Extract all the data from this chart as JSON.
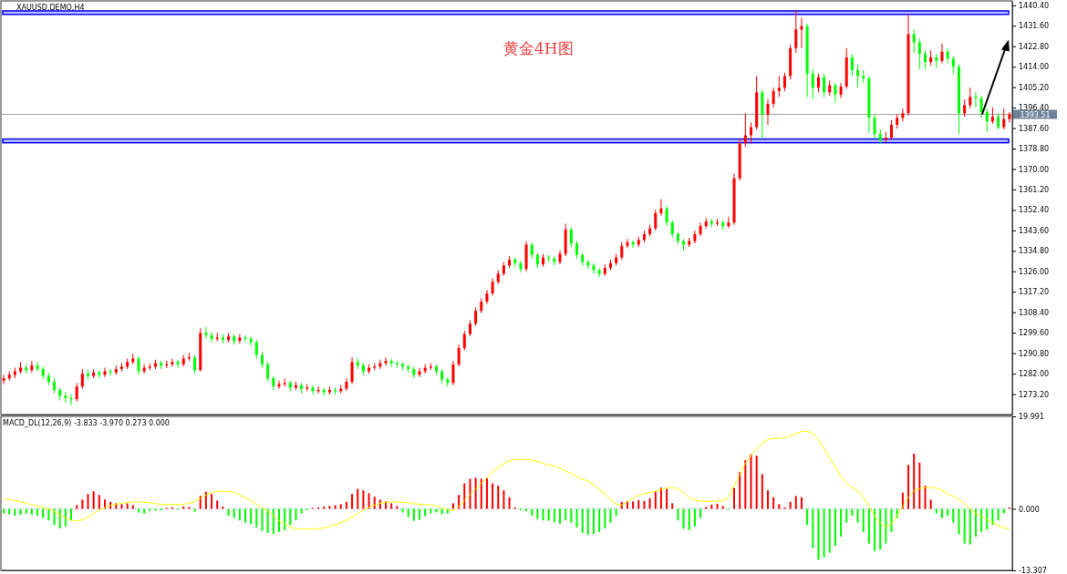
{
  "chart_data": [
    {
      "type": "candlestick",
      "title": "XAUUSD.DEMO,H4",
      "annotations": [
        "黄金4H图"
      ],
      "categories": [
        null,
        null,
        null,
        null,
        null,
        null,
        null,
        null,
        null,
        null,
        null,
        null,
        null,
        null,
        null,
        null,
        null,
        null,
        null,
        null,
        null,
        null,
        null,
        null,
        null,
        null,
        null,
        null,
        null,
        null,
        null,
        null,
        null,
        null,
        null,
        null,
        null,
        null,
        null,
        null,
        null,
        null,
        null,
        null,
        null,
        null,
        null,
        null,
        null,
        null,
        null,
        null,
        null,
        null,
        null,
        null,
        null,
        null,
        null,
        null,
        null,
        null,
        null,
        null,
        null,
        null,
        null,
        null,
        null,
        null,
        null,
        null,
        null,
        null,
        null,
        null,
        null,
        null,
        null,
        null,
        null,
        null,
        null,
        null,
        null,
        null,
        null,
        null,
        null,
        null,
        null,
        null,
        null,
        null,
        null,
        null,
        null,
        null,
        null,
        null,
        null,
        null,
        null,
        null,
        null,
        null,
        null,
        null,
        null,
        null,
        null,
        null,
        null,
        null,
        null,
        null,
        null,
        null,
        null,
        null,
        null,
        null,
        null,
        null,
        null,
        null,
        null,
        null,
        null,
        null,
        null,
        null,
        null,
        null,
        null,
        null,
        null,
        null,
        null,
        null,
        null,
        null,
        null,
        null,
        null,
        null,
        null,
        null,
        null,
        null,
        null,
        null,
        null,
        null,
        null,
        null,
        null,
        null,
        null,
        null,
        null,
        null,
        null,
        null,
        null,
        null,
        null,
        null,
        null,
        null,
        null,
        null,
        null,
        null,
        null,
        null,
        null,
        null,
        null,
        null
      ],
      "ohlc": [
        [
          1279.0,
          1281.5,
          1277.5,
          1280.0
        ],
        [
          1280.0,
          1283.0,
          1279.0,
          1281.5
        ],
        [
          1281.5,
          1284.5,
          1280.0,
          1283.0
        ],
        [
          1283.0,
          1287.0,
          1282.0,
          1284.6
        ],
        [
          1284.6,
          1286.0,
          1282.0,
          1283.5
        ],
        [
          1283.5,
          1287.5,
          1282.5,
          1285.5
        ],
        [
          1285.5,
          1287.0,
          1283.0,
          1284.0
        ],
        [
          1284.0,
          1285.0,
          1279.5,
          1281.0
        ],
        [
          1281.0,
          1282.5,
          1277.0,
          1278.5
        ],
        [
          1278.5,
          1280.0,
          1273.5,
          1275.0
        ],
        [
          1275.0,
          1276.0,
          1270.5,
          1272.5
        ],
        [
          1272.5,
          1274.0,
          1269.5,
          1271.5
        ],
        [
          1271.5,
          1273.0,
          1268.5,
          1271.0
        ],
        [
          1271.0,
          1278.0,
          1270.0,
          1276.5
        ],
        [
          1276.5,
          1284.0,
          1275.5,
          1282.0
        ],
        [
          1282.0,
          1283.5,
          1279.5,
          1281.0
        ],
        [
          1281.0,
          1284.0,
          1280.0,
          1282.5
        ],
        [
          1282.5,
          1283.5,
          1280.0,
          1281.5
        ],
        [
          1281.5,
          1284.5,
          1280.5,
          1283.0
        ],
        [
          1283.0,
          1284.0,
          1281.0,
          1282.5
        ],
        [
          1282.5,
          1285.5,
          1281.5,
          1284.0
        ],
        [
          1284.0,
          1286.5,
          1283.0,
          1285.0
        ],
        [
          1285.0,
          1288.5,
          1284.0,
          1287.0
        ],
        [
          1287.0,
          1290.5,
          1286.0,
          1288.5
        ],
        [
          1288.5,
          1289.5,
          1281.5,
          1283.0
        ],
        [
          1283.0,
          1286.0,
          1282.0,
          1284.5
        ],
        [
          1284.5,
          1286.5,
          1283.5,
          1285.0
        ],
        [
          1285.0,
          1288.0,
          1284.0,
          1286.5
        ],
        [
          1286.5,
          1287.5,
          1284.0,
          1285.5
        ],
        [
          1285.5,
          1287.5,
          1284.5,
          1286.0
        ],
        [
          1286.0,
          1288.5,
          1285.0,
          1287.0
        ],
        [
          1287.0,
          1288.0,
          1284.5,
          1286.0
        ],
        [
          1286.0,
          1290.0,
          1285.0,
          1288.5
        ],
        [
          1288.5,
          1291.0,
          1287.5,
          1289.0
        ],
        [
          1289.0,
          1290.0,
          1282.0,
          1283.5
        ],
        [
          1283.5,
          1301.5,
          1283.0,
          1299.5
        ],
        [
          1299.5,
          1302.0,
          1297.0,
          1298.5
        ],
        [
          1298.5,
          1300.0,
          1295.5,
          1297.0
        ],
        [
          1297.0,
          1299.5,
          1296.0,
          1297.5
        ],
        [
          1297.5,
          1299.0,
          1295.0,
          1296.5
        ],
        [
          1296.5,
          1299.5,
          1295.5,
          1298.0
        ],
        [
          1298.0,
          1299.0,
          1294.5,
          1296.0
        ],
        [
          1296.0,
          1299.0,
          1295.0,
          1297.5
        ],
        [
          1297.5,
          1298.5,
          1295.5,
          1297.0
        ],
        [
          1297.0,
          1298.0,
          1294.0,
          1295.5
        ],
        [
          1295.5,
          1296.5,
          1288.5,
          1290.0
        ],
        [
          1290.0,
          1291.5,
          1284.5,
          1286.0
        ],
        [
          1286.0,
          1287.0,
          1278.5,
          1280.0
        ],
        [
          1280.0,
          1281.0,
          1275.0,
          1276.5
        ],
        [
          1276.5,
          1279.0,
          1275.5,
          1277.5
        ],
        [
          1277.5,
          1280.0,
          1276.5,
          1278.0
        ],
        [
          1278.0,
          1279.0,
          1274.5,
          1276.0
        ],
        [
          1276.0,
          1278.5,
          1275.0,
          1277.0
        ],
        [
          1277.0,
          1278.0,
          1273.5,
          1275.5
        ],
        [
          1275.5,
          1277.5,
          1274.5,
          1276.0
        ],
        [
          1276.0,
          1277.0,
          1273.0,
          1274.5
        ],
        [
          1274.5,
          1276.5,
          1273.5,
          1275.0
        ],
        [
          1275.0,
          1276.0,
          1272.5,
          1274.0
        ],
        [
          1274.0,
          1276.5,
          1273.0,
          1275.0
        ],
        [
          1275.0,
          1276.0,
          1273.0,
          1274.5
        ],
        [
          1274.5,
          1277.0,
          1273.5,
          1275.5
        ],
        [
          1275.5,
          1280.0,
          1274.5,
          1278.5
        ],
        [
          1278.5,
          1289.0,
          1277.5,
          1287.0
        ],
        [
          1287.0,
          1288.5,
          1284.0,
          1285.5
        ],
        [
          1285.5,
          1286.5,
          1281.5,
          1283.0
        ],
        [
          1283.0,
          1286.0,
          1282.0,
          1284.5
        ],
        [
          1284.5,
          1286.5,
          1283.5,
          1285.0
        ],
        [
          1285.0,
          1288.0,
          1284.0,
          1286.5
        ],
        [
          1286.5,
          1289.0,
          1285.5,
          1287.5
        ],
        [
          1287.5,
          1288.5,
          1285.0,
          1286.5
        ],
        [
          1286.5,
          1287.5,
          1284.5,
          1286.0
        ],
        [
          1286.0,
          1287.0,
          1283.5,
          1285.0
        ],
        [
          1285.0,
          1286.0,
          1282.5,
          1284.0
        ],
        [
          1284.0,
          1285.0,
          1280.0,
          1281.5
        ],
        [
          1281.5,
          1284.5,
          1280.5,
          1283.0
        ],
        [
          1283.0,
          1286.0,
          1282.0,
          1284.5
        ],
        [
          1284.5,
          1286.5,
          1283.5,
          1285.0
        ],
        [
          1285.0,
          1286.0,
          1281.5,
          1283.0
        ],
        [
          1283.0,
          1284.0,
          1278.0,
          1279.5
        ],
        [
          1279.5,
          1280.5,
          1276.5,
          1278.0
        ],
        [
          1278.0,
          1287.5,
          1277.0,
          1286.0
        ],
        [
          1286.0,
          1294.5,
          1285.0,
          1293.0
        ],
        [
          1293.0,
          1300.5,
          1292.0,
          1299.0
        ],
        [
          1299.0,
          1305.0,
          1298.0,
          1303.5
        ],
        [
          1303.5,
          1310.5,
          1302.5,
          1309.0
        ],
        [
          1309.0,
          1314.5,
          1308.0,
          1313.0
        ],
        [
          1313.0,
          1318.0,
          1312.0,
          1316.5
        ],
        [
          1316.5,
          1323.0,
          1315.5,
          1321.5
        ],
        [
          1321.5,
          1326.5,
          1320.5,
          1325.0
        ],
        [
          1325.0,
          1330.0,
          1324.0,
          1328.5
        ],
        [
          1328.5,
          1332.5,
          1327.5,
          1331.0
        ],
        [
          1331.0,
          1332.0,
          1328.0,
          1329.5
        ],
        [
          1329.5,
          1330.5,
          1325.5,
          1327.0
        ],
        [
          1327.0,
          1339.0,
          1326.0,
          1337.5
        ],
        [
          1337.5,
          1338.5,
          1331.5,
          1333.0
        ],
        [
          1333.0,
          1334.0,
          1327.5,
          1329.0
        ],
        [
          1329.0,
          1333.5,
          1328.0,
          1332.0
        ],
        [
          1332.0,
          1333.0,
          1330.0,
          1331.5
        ],
        [
          1331.5,
          1332.5,
          1328.5,
          1330.0
        ],
        [
          1330.0,
          1335.0,
          1329.0,
          1333.5
        ],
        [
          1333.5,
          1346.5,
          1332.5,
          1344.0
        ],
        [
          1344.0,
          1345.0,
          1336.5,
          1338.0
        ],
        [
          1338.0,
          1339.0,
          1331.5,
          1333.0
        ],
        [
          1333.0,
          1334.0,
          1328.5,
          1330.0
        ],
        [
          1330.0,
          1331.0,
          1327.0,
          1328.5
        ],
        [
          1328.5,
          1329.5,
          1325.0,
          1326.5
        ],
        [
          1326.5,
          1327.5,
          1323.5,
          1325.0
        ],
        [
          1325.0,
          1329.0,
          1324.0,
          1327.5
        ],
        [
          1327.5,
          1331.0,
          1326.5,
          1329.5
        ],
        [
          1329.5,
          1333.5,
          1328.5,
          1332.0
        ],
        [
          1332.0,
          1338.5,
          1331.0,
          1337.0
        ],
        [
          1337.0,
          1340.0,
          1336.0,
          1338.5
        ],
        [
          1338.5,
          1339.5,
          1336.0,
          1337.5
        ],
        [
          1337.5,
          1341.0,
          1336.5,
          1339.5
        ],
        [
          1339.5,
          1343.5,
          1338.5,
          1342.0
        ],
        [
          1342.0,
          1346.0,
          1341.0,
          1344.5
        ],
        [
          1344.5,
          1352.5,
          1343.5,
          1351.0
        ],
        [
          1351.0,
          1357.0,
          1350.0,
          1353.0
        ],
        [
          1353.0,
          1354.0,
          1345.5,
          1347.0
        ],
        [
          1347.0,
          1348.0,
          1340.5,
          1342.0
        ],
        [
          1342.0,
          1343.0,
          1337.5,
          1339.0
        ],
        [
          1339.0,
          1340.0,
          1335.0,
          1337.5
        ],
        [
          1337.5,
          1340.5,
          1336.5,
          1339.0
        ],
        [
          1339.0,
          1343.5,
          1338.0,
          1342.0
        ],
        [
          1342.0,
          1347.0,
          1341.0,
          1345.5
        ],
        [
          1345.5,
          1349.0,
          1344.5,
          1347.5
        ],
        [
          1347.5,
          1348.5,
          1345.0,
          1346.5
        ],
        [
          1346.5,
          1348.5,
          1345.5,
          1347.0
        ],
        [
          1347.0,
          1348.0,
          1344.0,
          1345.5
        ],
        [
          1345.5,
          1349.5,
          1344.5,
          1347.0
        ],
        [
          1347.0,
          1368.0,
          1346.0,
          1366.0
        ],
        [
          1366.0,
          1383.0,
          1365.0,
          1381.0
        ],
        [
          1381.0,
          1394.0,
          1379.5,
          1384.5
        ],
        [
          1384.5,
          1390.0,
          1381.0,
          1388.0
        ],
        [
          1388.0,
          1410.0,
          1387.0,
          1403.0
        ],
        [
          1403.0,
          1404.0,
          1383.0,
          1393.5
        ],
        [
          1393.5,
          1400.0,
          1389.0,
          1398.0
        ],
        [
          1398.0,
          1405.0,
          1396.5,
          1403.5
        ],
        [
          1403.5,
          1410.0,
          1401.0,
          1405.0
        ],
        [
          1405.0,
          1411.5,
          1403.5,
          1410.0
        ],
        [
          1410.0,
          1423.5,
          1408.5,
          1422.0
        ],
        [
          1422.0,
          1438.5,
          1420.0,
          1430.0
        ],
        [
          1430.0,
          1435.0,
          1422.0,
          1431.5
        ],
        [
          1431.5,
          1432.5,
          1401.0,
          1411.0
        ],
        [
          1411.0,
          1413.0,
          1400.0,
          1405.0
        ],
        [
          1405.0,
          1411.0,
          1403.0,
          1409.5
        ],
        [
          1409.5,
          1411.0,
          1401.0,
          1403.0
        ],
        [
          1403.0,
          1408.0,
          1401.5,
          1406.0
        ],
        [
          1406.0,
          1407.0,
          1398.5,
          1402.0
        ],
        [
          1402.0,
          1407.0,
          1400.5,
          1405.5
        ],
        [
          1405.5,
          1422.0,
          1404.5,
          1418.0
        ],
        [
          1418.0,
          1419.5,
          1410.0,
          1412.5
        ],
        [
          1412.5,
          1415.0,
          1405.0,
          1410.0
        ],
        [
          1410.0,
          1412.5,
          1407.0,
          1409.0
        ],
        [
          1409.0,
          1410.0,
          1385.5,
          1392.0
        ],
        [
          1392.0,
          1393.5,
          1383.0,
          1385.0
        ],
        [
          1385.0,
          1387.0,
          1381.0,
          1382.5
        ],
        [
          1382.5,
          1386.0,
          1381.5,
          1383.5
        ],
        [
          1383.5,
          1391.0,
          1382.5,
          1389.0
        ],
        [
          1389.0,
          1393.5,
          1387.5,
          1392.0
        ],
        [
          1392.0,
          1396.0,
          1390.5,
          1394.0
        ],
        [
          1394.0,
          1436.5,
          1393.0,
          1428.0
        ],
        [
          1428.0,
          1430.0,
          1420.0,
          1424.5
        ],
        [
          1424.5,
          1426.0,
          1413.0,
          1419.5
        ],
        [
          1419.5,
          1421.0,
          1413.0,
          1416.0
        ],
        [
          1416.0,
          1421.0,
          1414.5,
          1418.0
        ],
        [
          1418.0,
          1419.5,
          1413.5,
          1416.5
        ],
        [
          1416.5,
          1424.0,
          1415.5,
          1420.5
        ],
        [
          1420.5,
          1422.0,
          1415.5,
          1417.5
        ],
        [
          1417.5,
          1418.5,
          1411.0,
          1414.0
        ],
        [
          1414.0,
          1415.0,
          1385.0,
          1394.0
        ],
        [
          1394.0,
          1400.0,
          1392.5,
          1397.5
        ],
        [
          1397.5,
          1405.0,
          1396.0,
          1401.0
        ],
        [
          1401.0,
          1403.0,
          1396.5,
          1400.5
        ],
        [
          1400.5,
          1401.5,
          1392.0,
          1394.5
        ],
        [
          1394.5,
          1396.0,
          1386.0,
          1390.5
        ],
        [
          1390.5,
          1396.5,
          1389.5,
          1392.5
        ],
        [
          1392.5,
          1394.0,
          1387.0,
          1388.0
        ],
        [
          1388.0,
          1396.0,
          1387.0,
          1391.5
        ],
        [
          1391.5,
          1394.5,
          1390.0,
          1393.5
        ]
      ],
      "colors": [
        "#ff0000",
        "#ff0000",
        "#ff0000",
        "#ff0000",
        "#00ff00",
        "#ff0000",
        "#00ff00",
        "#00ff00",
        "#00ff00",
        "#00ff00",
        "#00ff00",
        "#00ff00",
        "#00ff00",
        "#ff0000",
        "#ff0000",
        "#00ff00",
        "#ff0000",
        "#00ff00",
        "#ff0000",
        "#00ff00",
        "#ff0000",
        "#ff0000",
        "#ff0000",
        "#ff0000",
        "#00ff00",
        "#ff0000",
        "#ff0000",
        "#ff0000",
        "#00ff00",
        "#ff0000",
        "#ff0000",
        "#00ff00",
        "#ff0000",
        "#ff0000",
        "#00ff00",
        "#ff0000",
        "#00ff00",
        "#00ff00",
        "#ff0000",
        "#00ff00",
        "#ff0000",
        "#00ff00",
        "#ff0000",
        "#00ff00",
        "#00ff00",
        "#00ff00",
        "#00ff00",
        "#00ff00",
        "#00ff00",
        "#ff0000",
        "#ff0000",
        "#00ff00",
        "#ff0000",
        "#00ff00",
        "#ff0000",
        "#00ff00",
        "#ff0000",
        "#00ff00",
        "#ff0000",
        "#00ff00",
        "#ff0000",
        "#ff0000",
        "#ff0000",
        "#00ff00",
        "#00ff00",
        "#ff0000",
        "#ff0000",
        "#ff0000",
        "#ff0000",
        "#00ff00",
        "#00ff00",
        "#00ff00",
        "#00ff00",
        "#00ff00",
        "#ff0000",
        "#ff0000",
        "#ff0000",
        "#00ff00",
        "#00ff00",
        "#00ff00",
        "#ff0000",
        "#ff0000",
        "#ff0000",
        "#ff0000",
        "#ff0000",
        "#ff0000",
        "#ff0000",
        "#ff0000",
        "#ff0000",
        "#ff0000",
        "#ff0000",
        "#00ff00",
        "#00ff00",
        "#ff0000",
        "#00ff00",
        "#00ff00",
        "#ff0000",
        "#00ff00",
        "#00ff00",
        "#ff0000",
        "#ff0000",
        "#00ff00",
        "#00ff00",
        "#00ff00",
        "#00ff00",
        "#00ff00",
        "#00ff00",
        "#ff0000",
        "#ff0000",
        "#ff0000",
        "#ff0000",
        "#ff0000",
        "#00ff00",
        "#ff0000",
        "#ff0000",
        "#ff0000",
        "#ff0000",
        "#ff0000",
        "#00ff00",
        "#00ff00",
        "#00ff00",
        "#00ff00",
        "#ff0000",
        "#ff0000",
        "#ff0000",
        "#ff0000",
        "#00ff00",
        "#ff0000",
        "#00ff00",
        "#ff0000",
        "#ff0000",
        "#ff0000",
        "#ff0000",
        "#ff0000",
        "#ff0000",
        "#00ff00",
        "#ff0000",
        "#ff0000",
        "#ff0000",
        "#ff0000",
        "#ff0000",
        "#ff0000",
        "#ff0000",
        "#00ff00",
        "#00ff00",
        "#ff0000",
        "#00ff00",
        "#ff0000",
        "#00ff00",
        "#ff0000",
        "#ff0000",
        "#00ff00",
        "#00ff00",
        "#00ff00",
        "#00ff00",
        "#00ff00",
        "#00ff00",
        "#ff0000",
        "#ff0000",
        "#ff0000",
        "#ff0000",
        "#ff0000",
        "#00ff00",
        "#00ff00",
        "#00ff00",
        "#ff0000",
        "#00ff00",
        "#ff0000",
        "#00ff00",
        "#00ff00",
        "#00ff00",
        "#ff0000",
        "#ff0000",
        "#00ff00",
        "#00ff00",
        "#00ff00",
        "#ff0000",
        "#00ff00",
        "#ff0000",
        "#ff0000"
      ],
      "ylim": [
        1264.4,
        1442.3
      ],
      "yticks": [
        {
          "value": 1273.2,
          "label": "1273.20"
        },
        {
          "value": 1282,
          "label": "1282.00"
        },
        {
          "value": 1290.8,
          "label": "1290.80"
        },
        {
          "value": 1299.6,
          "label": "1299.60"
        },
        {
          "value": 1308.4,
          "label": "1308.40"
        },
        {
          "value": 1317.2,
          "label": "1317.20"
        },
        {
          "value": 1326,
          "label": "1326.00"
        },
        {
          "value": 1334.8,
          "label": "1334.80"
        },
        {
          "value": 1343.6,
          "label": "1343.60"
        },
        {
          "value": 1352.4,
          "label": "1352.40"
        },
        {
          "value": 1361.2,
          "label": "1361.20"
        },
        {
          "value": 1370,
          "label": "1370.00"
        },
        {
          "value": 1378.8,
          "label": "1378.80"
        },
        {
          "value": 1387.6,
          "label": "1387.60"
        },
        {
          "value": 1396.4,
          "label": "1396.40"
        },
        {
          "value": 1405.2,
          "label": "1405.20"
        },
        {
          "value": 1414,
          "label": "1414.00"
        },
        {
          "value": 1422.8,
          "label": "1422.80"
        },
        {
          "value": 1431.6,
          "label": "1431.60"
        },
        {
          "value": 1440.4,
          "label": "1440.40"
        }
      ],
      "ref_lines": [
        {
          "axis": "y",
          "value": 1393.51,
          "label": "1393.51",
          "color": "#a0a0a0"
        }
      ],
      "bands": [
        {
          "axis": "y",
          "from": 1436.5,
          "to": 1438.0,
          "color": "#0000ff"
        },
        {
          "axis": "y",
          "from": 1381.3,
          "to": 1382.9,
          "color": "#0000ff"
        }
      ]
    },
    {
      "type": "bar",
      "title": "MACD_DL(12,26,9) -3.833 -3.970 0.273 0.000",
      "categories": [
        null,
        null,
        null,
        null,
        null,
        null,
        null,
        null,
        null,
        null,
        null,
        null,
        null,
        null,
        null,
        null,
        null,
        null,
        null,
        null,
        null,
        null,
        null,
        null,
        null,
        null,
        null,
        null,
        null,
        null,
        null,
        null,
        null,
        null,
        null,
        null,
        null,
        null,
        null,
        null,
        null,
        null,
        null,
        null,
        null,
        null,
        null,
        null,
        null,
        null,
        null,
        null,
        null,
        null,
        null,
        null,
        null,
        null,
        null,
        null,
        null,
        null,
        null,
        null,
        null,
        null,
        null,
        null,
        null,
        null,
        null,
        null,
        null,
        null,
        null,
        null,
        null,
        null,
        null,
        null,
        null,
        null,
        null,
        null,
        null,
        null,
        null,
        null,
        null,
        null,
        null,
        null,
        null,
        null,
        null,
        null,
        null,
        null,
        null,
        null,
        null,
        null,
        null,
        null,
        null,
        null,
        null,
        null,
        null,
        null,
        null,
        null,
        null,
        null,
        null,
        null,
        null,
        null,
        null,
        null,
        null,
        null,
        null,
        null,
        null,
        null,
        null,
        null,
        null,
        null,
        null,
        null,
        null,
        null,
        null,
        null,
        null,
        null,
        null,
        null,
        null,
        null,
        null,
        null,
        null,
        null,
        null,
        null,
        null,
        null,
        null,
        null,
        null,
        null,
        null,
        null,
        null,
        null,
        null,
        null,
        null,
        null,
        null,
        null,
        null,
        null,
        null,
        null,
        null,
        null,
        null,
        null,
        null,
        null,
        null,
        null,
        null,
        null,
        null,
        null
      ],
      "series": [
        {
          "type": "bar",
          "values": [
            -1.0,
            -1.2,
            -1.5,
            -1.3,
            -1.0,
            -1.2,
            -1.5,
            -2.0,
            -2.5,
            -3.5,
            -4.2,
            -3.8,
            -2.5,
            0.8,
            2.0,
            3.2,
            3.8,
            3.0,
            2.0,
            1.5,
            1.2,
            1.0,
            1.2,
            0.8,
            -0.8,
            -1.0,
            -0.5,
            -0.4,
            -0.3,
            0.2,
            0.3,
            -0.2,
            0.5,
            0.4,
            -0.6,
            2.8,
            3.7,
            3.2,
            1.8,
            0.5,
            -1.5,
            -2.0,
            -2.5,
            -3.0,
            -3.3,
            -4.0,
            -4.8,
            -5.2,
            -5.4,
            -5.0,
            -4.6,
            -3.5,
            -2.5,
            -1.0,
            -0.3,
            0.2,
            0.3,
            0.5,
            0.6,
            0.8,
            1.0,
            1.5,
            3.2,
            4.3,
            4.0,
            3.4,
            2.6,
            2.0,
            1.6,
            1.2,
            0.6,
            -0.8,
            -1.8,
            -2.6,
            -2.4,
            -1.6,
            -1.0,
            -0.8,
            -1.2,
            -1.0,
            1.2,
            3.0,
            5.5,
            6.5,
            6.7,
            6.5,
            6.6,
            5.5,
            5.0,
            4.0,
            2.5,
            0.3,
            -0.3,
            -0.5,
            -1.5,
            -2.2,
            -2.5,
            -2.6,
            -2.9,
            -3.2,
            -2.5,
            -3.0,
            -4.0,
            -5.2,
            -5.6,
            -5.4,
            -5.0,
            -4.2,
            -3.0,
            -1.5,
            1.5,
            1.7,
            1.6,
            1.9,
            1.7,
            2.3,
            3.8,
            4.6,
            4.3,
            1.2,
            -2.5,
            -4.3,
            -4.6,
            -3.8,
            -2.0,
            0.4,
            0.9,
            1.1,
            0.6,
            -0.2,
            4.5,
            8.0,
            10.5,
            11.8,
            11.5,
            7.5,
            4.0,
            2.5,
            1.0,
            0.3,
            1.5,
            2.8,
            2.5,
            -3.5,
            -8.5,
            -11.0,
            -10.5,
            -9.5,
            -8.0,
            -6.0,
            -3.0,
            -1.5,
            -3.0,
            -5.0,
            -7.5,
            -9.1,
            -8.8,
            -7.5,
            -5.0,
            -2.0,
            3.5,
            9.5,
            11.9,
            10.0,
            5.0,
            2.0,
            -1.0,
            -2.0,
            -1.5,
            -3.0,
            -5.5,
            -7.5,
            -7.7,
            -6.0,
            -5.0,
            -4.5,
            -3.5,
            -2.5,
            -1.0,
            0.3
          ],
          "colors": [
            "#00ff00",
            "#00ff00",
            "#00ff00",
            "#00ff00",
            "#00ff00",
            "#00ff00",
            "#00ff00",
            "#00ff00",
            "#00ff00",
            "#00ff00",
            "#00ff00",
            "#00ff00",
            "#00ff00",
            "#ff0000",
            "#ff0000",
            "#ff0000",
            "#ff0000",
            "#ff0000",
            "#ff0000",
            "#ff0000",
            "#ff0000",
            "#ff0000",
            "#ff0000",
            "#ff0000",
            "#00ff00",
            "#00ff00",
            "#00ff00",
            "#00ff00",
            "#00ff00",
            "#ff0000",
            "#ff0000",
            "#00ff00",
            "#ff0000",
            "#ff0000",
            "#00ff00",
            "#ff0000",
            "#ff0000",
            "#ff0000",
            "#ff0000",
            "#ff0000",
            "#00ff00",
            "#00ff00",
            "#00ff00",
            "#00ff00",
            "#00ff00",
            "#00ff00",
            "#00ff00",
            "#00ff00",
            "#00ff00",
            "#00ff00",
            "#00ff00",
            "#00ff00",
            "#00ff00",
            "#00ff00",
            "#00ff00",
            "#ff0000",
            "#ff0000",
            "#ff0000",
            "#ff0000",
            "#ff0000",
            "#ff0000",
            "#ff0000",
            "#ff0000",
            "#ff0000",
            "#ff0000",
            "#ff0000",
            "#ff0000",
            "#ff0000",
            "#ff0000",
            "#ff0000",
            "#ff0000",
            "#00ff00",
            "#00ff00",
            "#00ff00",
            "#00ff00",
            "#00ff00",
            "#00ff00",
            "#00ff00",
            "#00ff00",
            "#00ff00",
            "#ff0000",
            "#ff0000",
            "#ff0000",
            "#ff0000",
            "#ff0000",
            "#ff0000",
            "#ff0000",
            "#ff0000",
            "#ff0000",
            "#ff0000",
            "#ff0000",
            "#ff0000",
            "#00ff00",
            "#00ff00",
            "#00ff00",
            "#00ff00",
            "#00ff00",
            "#00ff00",
            "#00ff00",
            "#00ff00",
            "#00ff00",
            "#00ff00",
            "#00ff00",
            "#00ff00",
            "#00ff00",
            "#00ff00",
            "#00ff00",
            "#00ff00",
            "#00ff00",
            "#00ff00",
            "#ff0000",
            "#ff0000",
            "#ff0000",
            "#ff0000",
            "#ff0000",
            "#ff0000",
            "#ff0000",
            "#ff0000",
            "#ff0000",
            "#ff0000",
            "#00ff00",
            "#00ff00",
            "#00ff00",
            "#00ff00",
            "#00ff00",
            "#ff0000",
            "#ff0000",
            "#ff0000",
            "#ff0000",
            "#00ff00",
            "#ff0000",
            "#ff0000",
            "#ff0000",
            "#ff0000",
            "#ff0000",
            "#ff0000",
            "#ff0000",
            "#ff0000",
            "#ff0000",
            "#ff0000",
            "#ff0000",
            "#ff0000",
            "#ff0000",
            "#00ff00",
            "#00ff00",
            "#00ff00",
            "#00ff00",
            "#00ff00",
            "#00ff00",
            "#00ff00",
            "#00ff00",
            "#00ff00",
            "#00ff00",
            "#00ff00",
            "#00ff00",
            "#00ff00",
            "#00ff00",
            "#00ff00",
            "#00ff00",
            "#00ff00",
            "#ff0000",
            "#ff0000",
            "#ff0000",
            "#ff0000",
            "#ff0000",
            "#ff0000",
            "#00ff00",
            "#00ff00",
            "#00ff00",
            "#00ff00",
            "#00ff00",
            "#00ff00",
            "#00ff00",
            "#00ff00",
            "#00ff00",
            "#00ff00",
            "#00ff00",
            "#00ff00",
            "#00ff00",
            "#ff0000"
          ]
        },
        {
          "type": "line",
          "color": "#ffff00",
          "values": [
            2.2,
            2.0,
            1.8,
            1.5,
            1.2,
            0.9,
            0.6,
            0.3,
            0.0,
            -0.6,
            -1.3,
            -2.0,
            -2.5,
            -2.6,
            -2.4,
            -1.8,
            -1.0,
            -0.3,
            0.3,
            0.7,
            1.0,
            1.2,
            1.4,
            1.5,
            1.5,
            1.4,
            1.3,
            1.1,
            1.0,
            0.9,
            0.9,
            0.9,
            1.0,
            1.2,
            1.5,
            2.2,
            3.0,
            3.5,
            3.8,
            3.8,
            3.8,
            3.5,
            3.0,
            2.4,
            1.8,
            1.0,
            0.3,
            -0.5,
            -1.5,
            -2.5,
            -3.3,
            -4.0,
            -4.3,
            -4.4,
            -4.4,
            -4.4,
            -4.3,
            -4.1,
            -3.8,
            -3.4,
            -3.0,
            -2.5,
            -1.8,
            -1.0,
            -0.3,
            0.3,
            0.8,
            1.2,
            1.4,
            1.5,
            1.5,
            1.4,
            1.3,
            1.1,
            1.0,
            0.9,
            0.8,
            0.6,
            0.2,
            -0.2,
            -0.4,
            0.5,
            1.8,
            3.0,
            4.3,
            5.5,
            6.8,
            8.0,
            9.0,
            9.8,
            10.4,
            10.7,
            10.7,
            10.7,
            10.5,
            10.2,
            9.8,
            9.5,
            9.3,
            8.8,
            8.2,
            7.6,
            7.0,
            6.4,
            6.0,
            5.2,
            4.2,
            3.2,
            2.0,
            1.0,
            0.8,
            1.5,
            2.3,
            3.0,
            3.3,
            3.5,
            3.8,
            4.2,
            4.5,
            4.6,
            4.3,
            3.5,
            2.5,
            1.8,
            1.7,
            1.6,
            1.6,
            1.7,
            1.8,
            2.5,
            5.0,
            7.5,
            9.8,
            11.5,
            13.0,
            14.2,
            15.0,
            15.2,
            15.2,
            15.4,
            15.8,
            16.3,
            16.7,
            16.8,
            16.3,
            15.0,
            13.0,
            11.0,
            9.0,
            7.0,
            5.5,
            4.6,
            3.8,
            2.5,
            0.5,
            -1.5,
            -3.0,
            -3.9,
            -3.2,
            -1.5,
            0.5,
            2.5,
            4.0,
            4.4,
            4.6,
            4.6,
            4.5,
            4.0,
            3.2,
            2.7,
            2.0,
            1.0,
            0.0,
            -1.0,
            -1.5,
            -2.3,
            -3.0,
            -3.6,
            -4.1,
            -4.4
          ]
        }
      ],
      "ylim": [
        -13.307,
        19.991
      ],
      "yticks": [
        -13.307,
        {
          "value": 0,
          "label": "0.000"
        },
        19.991
      ],
      "ref_lines": [
        {
          "axis": "y",
          "value": 0,
          "color": "#7f9fbf",
          "line_style": "dotted"
        }
      ]
    }
  ]
}
